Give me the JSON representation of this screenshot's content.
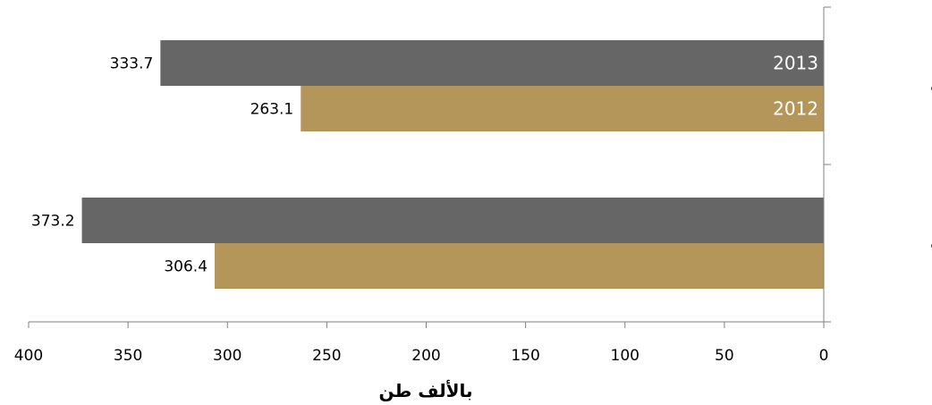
{
  "chart_data": {
    "type": "bar",
    "orientation": "horizontal",
    "x_reversed": true,
    "categories": [
      "الصادرات",
      "الواردات"
    ],
    "series": [
      {
        "name": "2013",
        "values": [
          333.7,
          373.2
        ],
        "color": "#666666"
      },
      {
        "name": "2012",
        "values": [
          263.1,
          306.4
        ],
        "color": "#b5965a"
      }
    ],
    "xlabel": "بالألف طن",
    "ylabel": "",
    "xlim": [
      0,
      400
    ],
    "xticks": [
      0,
      50,
      100,
      150,
      200,
      250,
      300,
      350,
      400
    ],
    "grid": false,
    "legend": "inside-bars"
  }
}
